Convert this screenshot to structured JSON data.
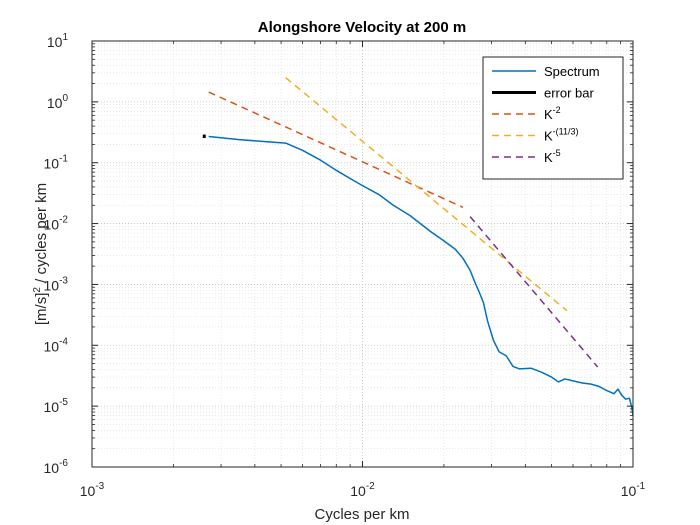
{
  "chart_data": {
    "type": "line",
    "title": "Alongshore Velocity at 200 m",
    "xlabel": "Cycles per km",
    "ylabel": {
      "base": "[m/s]",
      "exp": "2",
      "rest": " / cycles per km"
    },
    "x_scale": "log",
    "y_scale": "log",
    "xlim": [
      0.001,
      0.1
    ],
    "ylim": [
      1e-06,
      10
    ],
    "x_ticks": [
      {
        "value": 0.001,
        "base": "10",
        "exp": "-3"
      },
      {
        "value": 0.01,
        "base": "10",
        "exp": "-2"
      },
      {
        "value": 0.1,
        "base": "10",
        "exp": "-1"
      }
    ],
    "y_ticks": [
      {
        "value": 1e-06,
        "base": "10",
        "exp": "-6"
      },
      {
        "value": 1e-05,
        "base": "10",
        "exp": "-5"
      },
      {
        "value": 0.0001,
        "base": "10",
        "exp": "-4"
      },
      {
        "value": 0.001,
        "base": "10",
        "exp": "-3"
      },
      {
        "value": 0.01,
        "base": "10",
        "exp": "-2"
      },
      {
        "value": 0.1,
        "base": "10",
        "exp": "-1"
      },
      {
        "value": 1,
        "base": "10",
        "exp": "0"
      },
      {
        "value": 10,
        "base": "10",
        "exp": "1"
      }
    ],
    "grid": true,
    "minor_grid": true,
    "legend_position": "top-right",
    "series": [
      {
        "name": "Spectrum",
        "color": "#0072BD",
        "style": "solid",
        "points": [
          [
            0.0027,
            0.27
          ],
          [
            0.0035,
            0.24
          ],
          [
            0.0045,
            0.22
          ],
          [
            0.0052,
            0.21
          ],
          [
            0.006,
            0.16
          ],
          [
            0.007,
            0.11
          ],
          [
            0.008,
            0.075
          ],
          [
            0.009,
            0.055
          ],
          [
            0.01,
            0.042
          ],
          [
            0.0115,
            0.03
          ],
          [
            0.013,
            0.02
          ],
          [
            0.015,
            0.0135
          ],
          [
            0.0165,
            0.0097
          ],
          [
            0.018,
            0.0072
          ],
          [
            0.02,
            0.0052
          ],
          [
            0.022,
            0.0038
          ],
          [
            0.0235,
            0.0027
          ],
          [
            0.025,
            0.0017
          ],
          [
            0.026,
            0.0011
          ],
          [
            0.027,
            0.00075
          ],
          [
            0.028,
            0.0005
          ],
          [
            0.029,
            0.00025
          ],
          [
            0.0305,
            0.00012
          ],
          [
            0.032,
            7.8e-05
          ],
          [
            0.034,
            6.7e-05
          ],
          [
            0.036,
            4.5e-05
          ],
          [
            0.038,
            4.1e-05
          ],
          [
            0.042,
            4.2e-05
          ],
          [
            0.046,
            3.6e-05
          ],
          [
            0.05,
            3e-05
          ],
          [
            0.053,
            2.5e-05
          ],
          [
            0.056,
            2.8e-05
          ],
          [
            0.06,
            2.6e-05
          ],
          [
            0.065,
            2.4e-05
          ],
          [
            0.07,
            2.3e-05
          ],
          [
            0.075,
            2.1e-05
          ],
          [
            0.08,
            1.8e-05
          ],
          [
            0.085,
            1.6e-05
          ],
          [
            0.088,
            1.9e-05
          ],
          [
            0.091,
            1.5e-05
          ],
          [
            0.094,
            1.3e-05
          ],
          [
            0.097,
            1.35e-05
          ],
          [
            0.099,
            9.5e-06
          ],
          [
            0.1,
            7e-06
          ]
        ]
      },
      {
        "name": "error bar",
        "color": "#000000",
        "style": "solid",
        "points": [
          [
            0.0026,
            0.255
          ],
          [
            0.0026,
            0.29
          ]
        ]
      },
      {
        "name": "K",
        "name_exp": "-2",
        "color": "#D95319",
        "style": "dashed",
        "points": [
          [
            0.0027,
            1.45
          ],
          [
            0.0235,
            0.0185
          ]
        ]
      },
      {
        "name": "K",
        "name_exp": "-(11/3)",
        "color": "#EDB120",
        "style": "dashed",
        "points": [
          [
            0.0052,
            2.5
          ],
          [
            0.057,
            0.00037
          ]
        ]
      },
      {
        "name": "K",
        "name_exp": "-5",
        "color": "#7E2F8E",
        "style": "dashed",
        "points": [
          [
            0.025,
            0.013
          ],
          [
            0.074,
            4.4e-05
          ]
        ]
      }
    ]
  }
}
